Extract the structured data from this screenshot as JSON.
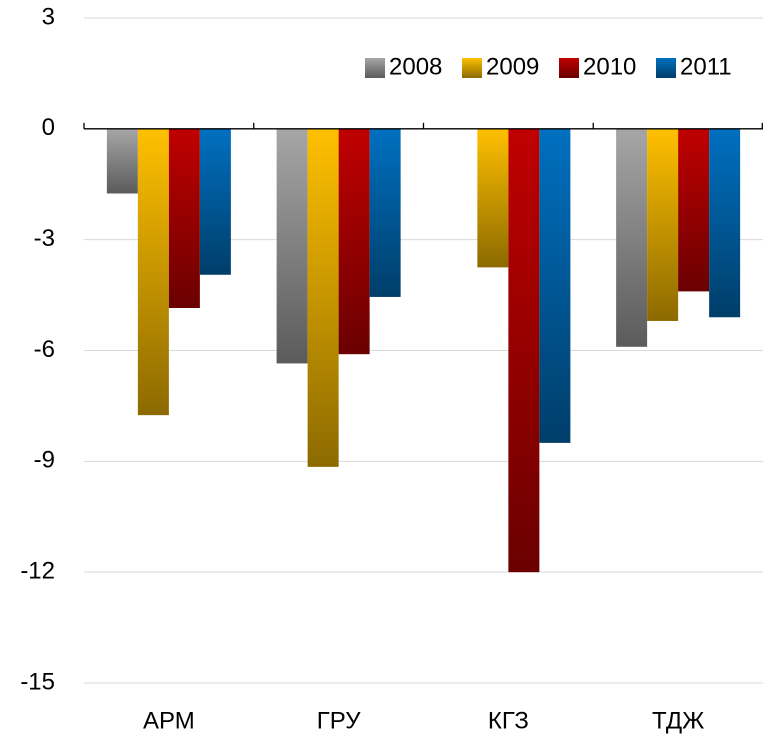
{
  "chart_data": {
    "type": "bar",
    "categories": [
      "АРМ",
      "ГРУ",
      "КГЗ",
      "ТДЖ"
    ],
    "series": [
      {
        "name": "2008",
        "color": "#a6a6a6",
        "values": [
          -1.75,
          -6.35,
          0,
          -5.9
        ]
      },
      {
        "name": "2009",
        "color": "#ffc000",
        "values": [
          -7.75,
          -9.15,
          -3.75,
          -5.2
        ]
      },
      {
        "name": "2010",
        "color": "#c00000",
        "values": [
          -4.85,
          -6.1,
          -12,
          -4.4
        ]
      },
      {
        "name": "2011",
        "color": "#0070c0",
        "values": [
          -3.95,
          -4.55,
          -8.5,
          -5.1
        ]
      }
    ],
    "ylim": [
      -15,
      3
    ],
    "yticks": [
      3,
      0,
      -3,
      -6,
      -9,
      -12,
      -15
    ],
    "grid": true,
    "legend": "top-right"
  }
}
